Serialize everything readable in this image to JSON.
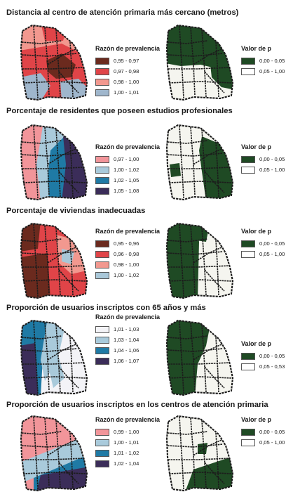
{
  "panels": [
    {
      "title": "Distancia al centro de atención primaria más cercano (metros)",
      "prevalence_legend": {
        "title": "Razón de prevalencia",
        "items": [
          {
            "label": "0,95 - 0,97",
            "color": "#6b2a1e"
          },
          {
            "label": "0,97 - 0,98",
            "color": "#e04448"
          },
          {
            "label": "0,98 - 1,00",
            "color": "#f2988f"
          },
          {
            "label": "1,00 - 1,01",
            "color": "#9fb6cc"
          }
        ]
      },
      "p_legend": {
        "title": "Valor de p",
        "items": [
          {
            "label": "0,00 - 0,05",
            "color": "#1f4a24"
          },
          {
            "label": "0,05 - 1,00",
            "color": "#ffffff"
          }
        ]
      }
    },
    {
      "title": "Porcentaje de residentes que poseen estudios profesionales",
      "prevalence_legend": {
        "title": "Razón de prevalencia",
        "items": [
          {
            "label": "0,97 - 1,00",
            "color": "#f2959a"
          },
          {
            "label": "1,00 - 1,02",
            "color": "#a9cadb"
          },
          {
            "label": "1,02 - 1,05",
            "color": "#1f7aa5"
          },
          {
            "label": "1,05 - 1,08",
            "color": "#3b2d59"
          }
        ]
      },
      "p_legend": {
        "title": "Valor de p",
        "items": [
          {
            "label": "0,00 - 0,05",
            "color": "#1f4a24"
          },
          {
            "label": "0,05 - 1,00",
            "color": "#ffffff"
          }
        ]
      }
    },
    {
      "title": "Porcentaje de viviendas inadecuadas",
      "prevalence_legend": {
        "title": "Razón de prevalencia",
        "items": [
          {
            "label": "0,95 - 0,96",
            "color": "#6b2a1e"
          },
          {
            "label": "0,96 - 0,98",
            "color": "#e04448"
          },
          {
            "label": "0,98 - 1,00",
            "color": "#f2988f"
          },
          {
            "label": "1,00 - 1,02",
            "color": "#a9c7d8"
          }
        ]
      },
      "p_legend": {
        "title": "Valor de p",
        "items": [
          {
            "label": "0,00 - 0,05",
            "color": "#1f4a24"
          },
          {
            "label": "0,05 - 1,00",
            "color": "#ffffff"
          }
        ]
      }
    },
    {
      "title": "Proporción de usuarios inscriptos con 65 años y más",
      "prevalence_legend": {
        "title": "Razón de prevalencia",
        "items": [
          {
            "label": "1,01 - 1,03",
            "color": "#f3f3f7"
          },
          {
            "label": "1,03 - 1,04",
            "color": "#a9cadb"
          },
          {
            "label": "1,04 - 1,06",
            "color": "#1f7aa5"
          },
          {
            "label": "1,06 - 1,07",
            "color": "#3b2d59"
          }
        ]
      },
      "p_legend": {
        "title": "Valor de p",
        "items": [
          {
            "label": "0,00 - 0,05",
            "color": "#1f4a24"
          },
          {
            "label": "0,05 - 0,53",
            "color": "#ffffff"
          }
        ]
      }
    },
    {
      "title": "Proporción de usuarios inscriptos en los centros de atención primaria",
      "prevalence_legend": {
        "title": "Razón de prevalencia",
        "items": [
          {
            "label": "0,99 - 1,00",
            "color": "#f2959a"
          },
          {
            "label": "1,00 - 1,01",
            "color": "#a9cadb"
          },
          {
            "label": "1,01 - 1,02",
            "color": "#1f7aa5"
          },
          {
            "label": "1,02 - 1,04",
            "color": "#3b2d59"
          }
        ]
      },
      "p_legend": {
        "title": "Valor de p",
        "items": [
          {
            "label": "0,00 - 0,05",
            "color": "#1f4a24"
          },
          {
            "label": "0,05 - 1,00",
            "color": "#ffffff"
          }
        ]
      }
    }
  ]
}
